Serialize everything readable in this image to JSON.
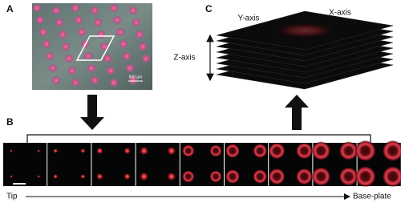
{
  "panels": {
    "a": {
      "label": "A",
      "scale_bar": "500 µm"
    },
    "b": {
      "label": "B",
      "start": "Tip",
      "end": "Base-plate"
    },
    "c": {
      "label": "C",
      "y_axis": "Y-axis",
      "x_axis": "X-axis",
      "z_axis": "Z-axis"
    }
  }
}
